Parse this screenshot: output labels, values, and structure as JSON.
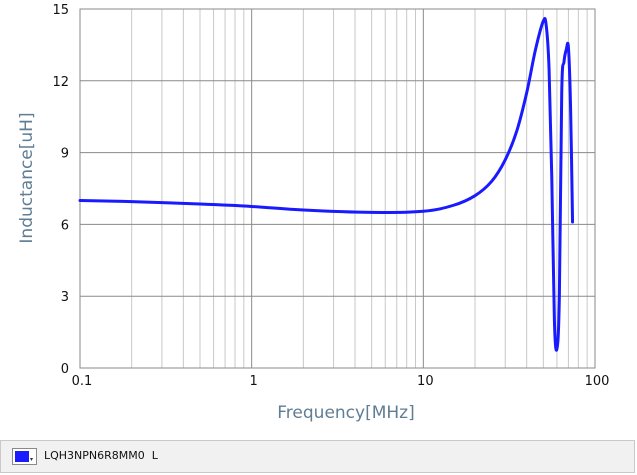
{
  "chart_data": {
    "type": "line",
    "x_scale": "log",
    "xlim": [
      0.1,
      100
    ],
    "ylim": [
      0,
      15
    ],
    "xlabel": "Frequency[MHz]",
    "ylabel": "Inductance[uH]",
    "x_ticks": [
      "0.1",
      "1",
      "10",
      "100"
    ],
    "y_ticks": [
      "0",
      "3",
      "6",
      "9",
      "12",
      "15"
    ],
    "grid": true,
    "series": [
      {
        "name": "LQH3NPN6R8MM0  L",
        "color": "#1a1aff",
        "x": [
          0.1,
          0.2,
          0.5,
          1,
          2,
          5,
          10,
          15,
          20,
          25,
          30,
          35,
          40,
          45,
          50,
          52,
          54,
          56,
          58,
          60,
          62,
          64,
          66,
          68,
          70,
          72,
          74
        ],
        "y": [
          7.0,
          6.95,
          6.85,
          6.75,
          6.6,
          6.5,
          6.55,
          6.8,
          7.2,
          7.8,
          8.7,
          9.9,
          11.5,
          13.3,
          14.5,
          14.3,
          12.5,
          8.0,
          2.0,
          0.8,
          3.0,
          11.5,
          12.8,
          13.3,
          13.4,
          11.0,
          6.1
        ]
      }
    ]
  },
  "legend": {
    "label": "LQH3NPN6R8MM0  L",
    "dropdown_icon": "chevron-down-icon"
  }
}
